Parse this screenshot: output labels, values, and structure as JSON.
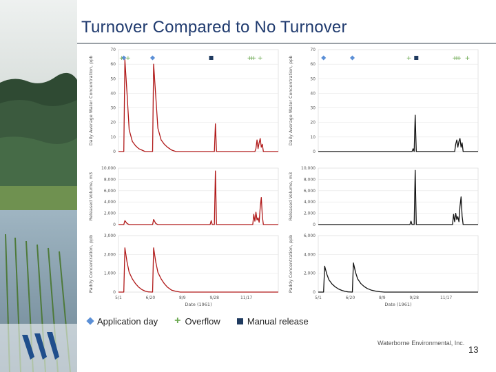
{
  "slide": {
    "title": "Turnover Compared to No Turnover",
    "footer": "Waterborne Environmental, Inc.",
    "page_number": "13"
  },
  "legend": {
    "application": "Application day",
    "overflow": "Overflow",
    "manual": "Manual release"
  },
  "colors": {
    "title": "#1f3a6e",
    "turnover_series": "#b01818",
    "no_turnover_series": "#111111",
    "application_marker": "#5b8fd6",
    "overflow_marker": "#6aa84f",
    "manual_marker": "#1f3a5f"
  },
  "chart_data": [
    {
      "type": "line",
      "panel": "top-left",
      "ylabel": "Daily Average Water Concentration, ppb",
      "yticks": [
        "0",
        "10",
        "20",
        "30",
        "40",
        "50",
        "60",
        "70"
      ],
      "ylim": [
        0,
        70
      ],
      "series": [
        {
          "points": [
            [
              0,
              0
            ],
            [
              5,
              0
            ],
            [
              6,
              63
            ],
            [
              8,
              40
            ],
            [
              10,
              15
            ],
            [
              13,
              7
            ],
            [
              16,
              4
            ],
            [
              19,
              2
            ],
            [
              22,
              1
            ],
            [
              25,
              0
            ],
            [
              32,
              0
            ],
            [
              33,
              60
            ],
            [
              35,
              38
            ],
            [
              37,
              16
            ],
            [
              40,
              8
            ],
            [
              43,
              5
            ],
            [
              46,
              3
            ],
            [
              50,
              1
            ],
            [
              54,
              0
            ],
            [
              90,
              0
            ],
            [
              91,
              19
            ],
            [
              92,
              0
            ],
            [
              128,
              0
            ],
            [
              129,
              2
            ],
            [
              130,
              8
            ],
            [
              131,
              2
            ],
            [
              132,
              6
            ],
            [
              133,
              9
            ],
            [
              134,
              3
            ],
            [
              135,
              5
            ],
            [
              136,
              0
            ],
            [
              150,
              0
            ]
          ]
        }
      ],
      "markers": {
        "application": [
          5,
          32
        ],
        "overflow": [
          3,
          9,
          123,
          125,
          127,
          133
        ],
        "manual": [
          87
        ]
      }
    },
    {
      "type": "line",
      "panel": "top-right",
      "ylabel": "Daily Average Water Concentration, ppb",
      "yticks": [
        "0",
        "10",
        "20",
        "30",
        "40",
        "50",
        "60",
        "70"
      ],
      "ylim": [
        0,
        70
      ],
      "series": [
        {
          "points": [
            [
              0,
              0
            ],
            [
              88,
              0
            ],
            [
              89,
              2
            ],
            [
              90,
              0
            ],
            [
              91,
              25
            ],
            [
              92,
              0
            ],
            [
              128,
              0
            ],
            [
              129,
              5
            ],
            [
              130,
              8
            ],
            [
              131,
              3
            ],
            [
              132,
              7
            ],
            [
              133,
              9
            ],
            [
              134,
              3
            ],
            [
              135,
              6
            ],
            [
              136,
              0
            ],
            [
              150,
              0
            ]
          ]
        }
      ],
      "markers": {
        "application": [
          5,
          32
        ],
        "overflow": [
          85,
          128,
          130,
          132,
          140
        ],
        "manual": [
          92
        ]
      }
    },
    {
      "type": "line",
      "panel": "middle-left",
      "ylabel": "Released Volume, m3",
      "yticks": [
        "0",
        "2,000",
        "4,000",
        "6,000",
        "8,000",
        "10,000"
      ],
      "ylim": [
        0,
        10000
      ],
      "series": [
        {
          "points": [
            [
              0,
              0
            ],
            [
              5,
              0
            ],
            [
              6,
              700
            ],
            [
              8,
              200
            ],
            [
              10,
              0
            ],
            [
              32,
              0
            ],
            [
              33,
              900
            ],
            [
              35,
              200
            ],
            [
              37,
              0
            ],
            [
              86,
              0
            ],
            [
              87,
              700
            ],
            [
              88,
              0
            ],
            [
              90,
              0
            ],
            [
              91,
              9500
            ],
            [
              92,
              0
            ],
            [
              126,
              0
            ],
            [
              127,
              1800
            ],
            [
              128,
              600
            ],
            [
              129,
              2200
            ],
            [
              130,
              800
            ],
            [
              131,
              1200
            ],
            [
              132,
              400
            ],
            [
              133,
              3000
            ],
            [
              134,
              4800
            ],
            [
              135,
              1500
            ],
            [
              136,
              0
            ],
            [
              150,
              0
            ]
          ]
        }
      ]
    },
    {
      "type": "line",
      "panel": "middle-right",
      "ylabel": "Released Volume, m3",
      "yticks": [
        "0",
        "2,000",
        "4,000",
        "6,000",
        "8,000",
        "10,000"
      ],
      "ylim": [
        0,
        10000
      ],
      "series": [
        {
          "points": [
            [
              0,
              0
            ],
            [
              86,
              0
            ],
            [
              87,
              600
            ],
            [
              88,
              0
            ],
            [
              90,
              0
            ],
            [
              91,
              9600
            ],
            [
              92,
              0
            ],
            [
              126,
              0
            ],
            [
              127,
              1800
            ],
            [
              128,
              500
            ],
            [
              129,
              2000
            ],
            [
              130,
              900
            ],
            [
              131,
              1400
            ],
            [
              132,
              500
            ],
            [
              133,
              3200
            ],
            [
              134,
              4900
            ],
            [
              135,
              1500
            ],
            [
              136,
              0
            ],
            [
              150,
              0
            ]
          ]
        }
      ]
    },
    {
      "type": "line",
      "panel": "bottom-left",
      "ylabel": "Paddy Concentration, ppb",
      "xlabel": "Date (1961)",
      "xticks": [
        "5/1",
        "6/20",
        "8/9",
        "9/28",
        "11/17"
      ],
      "yticks": [
        "0",
        "1,000",
        "2,000",
        "3,000"
      ],
      "ylim": [
        0,
        3000
      ],
      "series": [
        {
          "points": [
            [
              0,
              0
            ],
            [
              5,
              0
            ],
            [
              6,
              2350
            ],
            [
              8,
              1600
            ],
            [
              10,
              1050
            ],
            [
              13,
              700
            ],
            [
              16,
              450
            ],
            [
              19,
              260
            ],
            [
              22,
              130
            ],
            [
              25,
              50
            ],
            [
              28,
              10
            ],
            [
              32,
              0
            ],
            [
              33,
              2350
            ],
            [
              35,
              1600
            ],
            [
              37,
              1050
            ],
            [
              40,
              700
            ],
            [
              43,
              450
            ],
            [
              46,
              260
            ],
            [
              50,
              100
            ],
            [
              54,
              40
            ],
            [
              58,
              0
            ],
            [
              150,
              0
            ]
          ]
        }
      ]
    },
    {
      "type": "line",
      "panel": "bottom-right",
      "ylabel": "Paddy Concentration, ppb",
      "xlabel": "Date (1961)",
      "xticks": [
        "5/1",
        "6/20",
        "8/9",
        "9/28",
        "11/17"
      ],
      "yticks": [
        "0",
        "2,000",
        "4,000",
        "6,000"
      ],
      "ylim": [
        0,
        6000
      ],
      "series": [
        {
          "points": [
            [
              0,
              0
            ],
            [
              5,
              0
            ],
            [
              6,
              2750
            ],
            [
              8,
              1900
            ],
            [
              10,
              1300
            ],
            [
              13,
              850
            ],
            [
              16,
              550
            ],
            [
              19,
              330
            ],
            [
              22,
              180
            ],
            [
              25,
              80
            ],
            [
              28,
              20
            ],
            [
              32,
              0
            ],
            [
              33,
              3100
            ],
            [
              35,
              2100
            ],
            [
              37,
              1400
            ],
            [
              40,
              900
            ],
            [
              43,
              600
            ],
            [
              46,
              380
            ],
            [
              50,
              200
            ],
            [
              54,
              100
            ],
            [
              58,
              40
            ],
            [
              62,
              0
            ],
            [
              150,
              0
            ]
          ]
        }
      ]
    }
  ]
}
